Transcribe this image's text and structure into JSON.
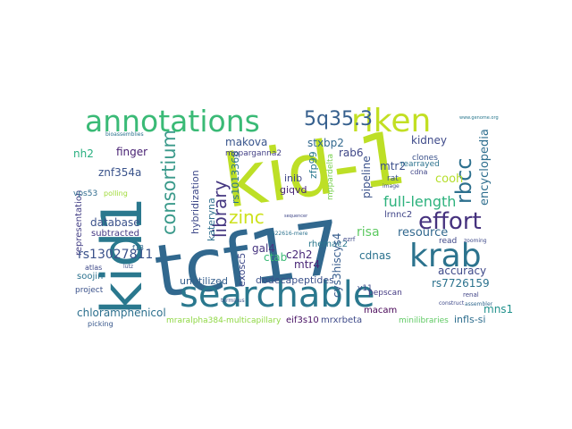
{
  "words": [
    {
      "text": "kid-1",
      "color": "#bddf26"
    },
    {
      "text": "tcf17",
      "color": "#31688e"
    },
    {
      "text": "kid1",
      "color": "#2a788e"
    },
    {
      "text": "searchable",
      "color": "#2a788e"
    },
    {
      "text": "annotations",
      "color": "#3aba76"
    },
    {
      "text": "riken",
      "color": "#c2df23"
    },
    {
      "text": "krab",
      "color": "#2c738e"
    },
    {
      "text": "5q35.3",
      "color": "#355f8d"
    },
    {
      "text": "consortium",
      "color": "#3b9a8b"
    },
    {
      "text": "library",
      "color": "#453781"
    },
    {
      "text": "effort",
      "color": "#46327e"
    },
    {
      "text": "rbcc",
      "color": "#2d708e"
    },
    {
      "text": "zinc",
      "color": "#cde11d"
    },
    {
      "text": "encyclopedia",
      "color": "#2e6e8e"
    },
    {
      "text": "full-length",
      "color": "#2db27d"
    },
    {
      "text": "kidney",
      "color": "#3e4a89"
    },
    {
      "text": "cooh",
      "color": "#b5de2b"
    },
    {
      "text": "mtr2",
      "color": "#3c508b"
    },
    {
      "text": "stxbp2",
      "color": "#31688e"
    },
    {
      "text": "makova",
      "color": "#39558c"
    },
    {
      "text": "finger",
      "color": "#482173"
    },
    {
      "text": "znf354a",
      "color": "#3a538b"
    },
    {
      "text": "nh2",
      "color": "#29af7f"
    },
    {
      "text": "hybridization",
      "color": "#3e4989"
    },
    {
      "text": "kateryna",
      "color": "#2e6f8e"
    },
    {
      "text": "rs1013368",
      "color": "#2c728e"
    },
    {
      "text": "mpparganna2",
      "color": "#423f85"
    },
    {
      "text": "inib",
      "color": "#3f4788"
    },
    {
      "text": "giqvd",
      "color": "#482576"
    },
    {
      "text": "zfp99",
      "color": "#2a788e"
    },
    {
      "text": "mppardelta",
      "color": "#7ad151"
    },
    {
      "text": "pipeline",
      "color": "#3b528b"
    },
    {
      "text": "lrnnc2",
      "color": "#404588"
    },
    {
      "text": "resource",
      "color": "#31688e"
    },
    {
      "text": "risa",
      "color": "#5ec962"
    },
    {
      "text": "database",
      "color": "#3b528b"
    },
    {
      "text": "representation",
      "color": "#433e85"
    },
    {
      "text": "subtracted",
      "color": "#443983"
    },
    {
      "text": "rs13027811",
      "color": "#3b528b"
    },
    {
      "text": "vps53",
      "color": "#2f6b8e"
    },
    {
      "text": "gal4",
      "color": "#46337f"
    },
    {
      "text": "ctab",
      "color": "#3aba76"
    },
    {
      "text": "c2h2",
      "color": "#482878"
    },
    {
      "text": "exosc5",
      "color": "#3e4989"
    },
    {
      "text": "mtr4",
      "color": "#482475"
    },
    {
      "text": "rhemac2",
      "color": "#2a788e"
    },
    {
      "text": "cys3hiscys4",
      "color": "#365c8d"
    },
    {
      "text": "accuracy",
      "color": "#3e4989"
    },
    {
      "text": "rs7726159",
      "color": "#2c728e"
    },
    {
      "text": "rab6",
      "color": "#3f4788"
    },
    {
      "text": "soojin",
      "color": "#2c728e"
    },
    {
      "text": "unutilized",
      "color": "#355f8d"
    },
    {
      "text": "dodecapeptides",
      "color": "#3b518b"
    },
    {
      "text": "mns1",
      "color": "#21918c"
    },
    {
      "text": "chloramphenicol",
      "color": "#2d708e"
    },
    {
      "text": "picking",
      "color": "#38588c"
    },
    {
      "text": "mraralpha384-multicapillary",
      "color": "#8fd744"
    },
    {
      "text": "eif3s10",
      "color": "#471063"
    },
    {
      "text": "mrxrbeta",
      "color": "#3e4a89"
    },
    {
      "text": "minilibraries",
      "color": "#5ec962"
    },
    {
      "text": "infls-si",
      "color": "#2e6e8e"
    },
    {
      "text": "macam",
      "color": "#440154"
    },
    {
      "text": "pepscan",
      "color": "#443a83"
    },
    {
      "text": "project",
      "color": "#3b528b"
    },
    {
      "text": "atlas",
      "color": "#3e4989"
    },
    {
      "text": "f13",
      "color": "#31688e"
    },
    {
      "text": "clones",
      "color": "#3b528b"
    },
    {
      "text": "rearrayed",
      "color": "#2c728e"
    },
    {
      "text": "cdnas",
      "color": "#2c728e"
    },
    {
      "text": "read",
      "color": "#3f4788"
    },
    {
      "text": "cdna",
      "color": "#404688"
    },
    {
      "text": "rat",
      "color": "#3b528b"
    },
    {
      "text": "v11",
      "color": "#3e4989"
    },
    {
      "text": "renal",
      "color": "#414487"
    },
    {
      "text": "polling",
      "color": "#a0da39"
    },
    {
      "text": "www.genome.org",
      "color": "#2a788e"
    },
    {
      "text": "bioassemblies",
      "color": "#2c728e"
    },
    {
      "text": "lutz",
      "color": "#3b528b"
    },
    {
      "text": "terminus",
      "color": "#3b528b"
    },
    {
      "text": "image",
      "color": "#3e4989"
    },
    {
      "text": "zooming",
      "color": "#3e4989"
    },
    {
      "text": "construct",
      "color": "#3e4989"
    },
    {
      "text": "assembler",
      "color": "#31688e"
    },
    {
      "text": "rs22616-mere",
      "color": "#2c728e"
    },
    {
      "text": "ezrf",
      "color": "#3e4989"
    },
    {
      "text": "sequencer",
      "color": "#3f4788"
    }
  ]
}
